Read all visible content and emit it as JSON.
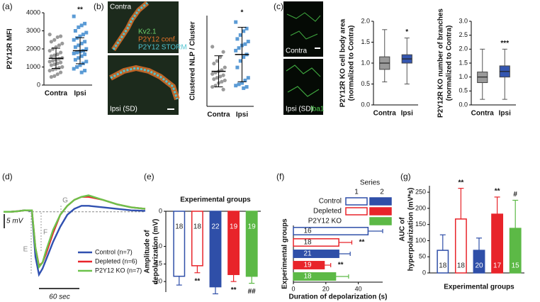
{
  "chart_data": [
    {
      "type": "dot",
      "panel": "(a)",
      "ylabel": [
        "P2Y12R MFI"
      ],
      "categories": [
        "Contra",
        "Ipsi"
      ],
      "colors": [
        "#9a9a9a",
        "#5b9bd5"
      ],
      "markers": [
        "circle",
        "square"
      ],
      "points": [
        [
          2800,
          2700,
          2650,
          2500,
          2400,
          2300,
          2200,
          2100,
          2000,
          1900,
          1800,
          1700,
          1650,
          1600,
          1500,
          1450,
          1400,
          1350,
          1300,
          1250,
          1200,
          1150,
          1100,
          1000,
          950,
          900,
          850,
          800,
          700,
          600,
          500,
          450
        ],
        [
          3800,
          3400,
          3300,
          3200,
          3000,
          2900,
          2800,
          2700,
          2600,
          2500,
          2400,
          2300,
          2200,
          2100,
          2000,
          1900,
          1850,
          1800,
          1750,
          1700,
          1600,
          1500,
          1400,
          1300,
          1200,
          1100,
          1000,
          900,
          800,
          700
        ]
      ],
      "means": [
        1480,
        1900
      ],
      "sd": [
        560,
        720
      ],
      "ylim": [
        0,
        4000
      ],
      "yticks": [
        0,
        1000,
        2000,
        3000,
        4000
      ],
      "significance": [
        null,
        "**"
      ]
    },
    {
      "type": "dot",
      "panel": "(b)",
      "ylabel": [
        "Clustered NLP / Cluster"
      ],
      "categories": [
        "Contra",
        "Ipsi"
      ],
      "colors": [
        "#9a9a9a",
        "#5b9bd5"
      ],
      "markers": [
        "circle",
        "square"
      ],
      "points": [
        [
          46,
          42,
          38,
          35,
          33,
          30,
          28,
          27,
          26,
          25,
          24,
          23,
          22,
          21,
          20,
          19,
          18,
          16,
          15,
          13
        ],
        [
          65,
          60,
          58,
          55,
          52,
          50,
          48,
          47,
          45,
          43,
          40,
          38,
          35,
          30,
          22,
          20,
          18,
          17,
          16,
          15,
          14
        ]
      ],
      "means": [
        27,
        40
      ],
      "sd": [
        12,
        21
      ],
      "ylim": [
        0,
        70
      ],
      "significance": [
        null,
        "*"
      ]
    },
    {
      "type": "box",
      "panel": "(c)",
      "ylabel": [
        "P2Y12R KO cell body area",
        "(normalized to Contra)"
      ],
      "categories": [
        "Contra",
        "Ipsi"
      ],
      "colors": [
        "#9a9a9a",
        "#3456b0"
      ],
      "boxes": [
        {
          "min": 0.55,
          "q1": 0.85,
          "median": 1.0,
          "q3": 1.15,
          "max": 1.8
        },
        {
          "min": 0.5,
          "q1": 1.0,
          "median": 1.1,
          "q3": 1.2,
          "max": 1.6
        }
      ],
      "ylim": [
        0,
        2
      ],
      "yticks": [
        {
          "value": 0,
          "label": "0.0"
        },
        0.5,
        {
          "value": 1,
          "label": "1.0"
        },
        1.5,
        {
          "value": 2,
          "label": "2.0"
        }
      ],
      "significance": [
        null,
        "*"
      ]
    },
    {
      "type": "box",
      "ylabel": [
        "P2Y12R KO number of branches",
        "(normalized to Contra)"
      ],
      "categories": [
        "Contra",
        "Ipsi"
      ],
      "colors": [
        "#9a9a9a",
        "#3456b0"
      ],
      "boxes": [
        {
          "min": 0.2,
          "q1": 0.8,
          "median": 1.0,
          "q3": 1.18,
          "max": 2.0
        },
        {
          "min": 0.2,
          "q1": 1.0,
          "median": 1.2,
          "q3": 1.4,
          "max": 2.0
        }
      ],
      "ylim": [
        0,
        3
      ],
      "yticks": [
        {
          "value": 0,
          "label": "0.0"
        },
        0.5,
        {
          "value": 1,
          "label": "1.0"
        },
        1.5,
        {
          "value": 2,
          "label": "2.0"
        },
        2.5,
        {
          "value": 3,
          "label": "3.0"
        }
      ],
      "significance": [
        null,
        "***"
      ]
    },
    {
      "type": "line",
      "panel": "(d)",
      "x": [
        0,
        10,
        20,
        30,
        40,
        45,
        50,
        55,
        60,
        70,
        80,
        90,
        100,
        110,
        120,
        140,
        160,
        180,
        200
      ],
      "xlim": [
        0,
        200
      ],
      "ylim": [
        -24,
        8
      ],
      "series": [
        {
          "name": "Control (n=7)",
          "color": "#3050b0",
          "values": [
            0,
            0,
            0.2,
            0.5,
            0.3,
            -15,
            -21,
            -19,
            -16,
            -10,
            -5,
            -1,
            1,
            2,
            2,
            1.5,
            1,
            0.5,
            0.3
          ]
        },
        {
          "name": "Depleted (n=6)",
          "color": "#e8242a",
          "values": [
            0,
            0,
            0.2,
            0.5,
            0.5,
            -12,
            -18,
            -17,
            -14,
            -7,
            -1,
            2,
            4,
            5,
            5,
            4,
            2.5,
            1.5,
            1
          ]
        },
        {
          "name": "P2Y12 KO (n=7)",
          "color": "#6cc24a",
          "values": [
            0,
            0,
            0.2,
            0.5,
            0.5,
            -12,
            -18.5,
            -17,
            -13,
            -6,
            -1,
            2,
            4,
            5,
            5.5,
            4,
            2.5,
            1.5,
            1
          ]
        }
      ],
      "scale_labels": [
        "5 mV",
        "60 sec"
      ],
      "annotations": [
        "E",
        "F",
        "G"
      ]
    },
    {
      "type": "bar",
      "panel": "(e)",
      "title": "Experimental groups",
      "ylabel": [
        "Amplitude of",
        "depolarization (mV)"
      ],
      "values": [
        -18.5,
        -15.5,
        -21.5,
        -18,
        -18.5
      ],
      "errors": [
        2.5,
        2,
        2,
        2,
        2
      ],
      "counts": [
        18,
        18,
        22,
        19,
        19
      ],
      "colors": [
        "#2f4fa8",
        "#e8242a",
        "#2f4fa8",
        "#e8242a",
        "#5cb946"
      ],
      "filled": [
        false,
        false,
        true,
        true,
        true
      ],
      "significance": [
        null,
        "**",
        null,
        "**",
        "##"
      ],
      "ylim": [
        -23,
        0
      ],
      "yticks": [
        0,
        -10,
        -15,
        -20
      ]
    },
    {
      "type": "hbar",
      "panel": "(f)",
      "ylabel": [
        "Experimental groups"
      ],
      "xlabel": "Duration of depolarization (s)",
      "values": [
        46,
        28,
        28,
        19,
        26
      ],
      "errors": [
        9,
        8,
        7,
        4,
        8
      ],
      "counts": [
        16,
        18,
        21,
        19,
        18
      ],
      "colors": [
        "#2f4fa8",
        "#e8242a",
        "#2f4fa8",
        "#e8242a",
        "#5cb946"
      ],
      "filled": [
        false,
        false,
        true,
        true,
        true
      ],
      "significance": [
        null,
        "**",
        null,
        "**",
        null
      ],
      "xlim": [
        0,
        55
      ],
      "xticks": [
        0,
        20,
        40
      ],
      "legend": {
        "title": "Series",
        "columns": [
          "1",
          "2"
        ],
        "rows": [
          "Control",
          "Depleted",
          "P2Y12 KO"
        ],
        "colors": [
          "#2f4fa8",
          "#e8242a",
          "#5cb946"
        ],
        "open_swatch": [
          true,
          true,
          false
        ]
      }
    },
    {
      "type": "bar",
      "panel": "(g)",
      "ylabel": [
        "AUC of",
        "hyperpolarization (mV*s)"
      ],
      "xlabel": "Experimental groups",
      "values": [
        70,
        167,
        70,
        182,
        138
      ],
      "errors": [
        48,
        95,
        38,
        53,
        87
      ],
      "counts": [
        18,
        18,
        20,
        17,
        15
      ],
      "colors": [
        "#2f4fa8",
        "#e8242a",
        "#2f4fa8",
        "#e8242a",
        "#5cb946"
      ],
      "filled": [
        false,
        false,
        true,
        true,
        true
      ],
      "significance": [
        null,
        "**",
        null,
        "**",
        "#"
      ],
      "ylim": [
        0,
        270
      ],
      "yticks": [
        0,
        50,
        100,
        150,
        200,
        250
      ]
    }
  ],
  "images": {
    "b": {
      "top_label": "Contra",
      "channels": [
        "Kv2.1",
        "P2Y12 conf.",
        "P2Y12 STORM"
      ],
      "bottom_label": "Ipsi (SD)"
    },
    "c": {
      "top_label": "Contra",
      "bottom_label": "Ipsi (SD)",
      "stain": "Iba1"
    }
  }
}
